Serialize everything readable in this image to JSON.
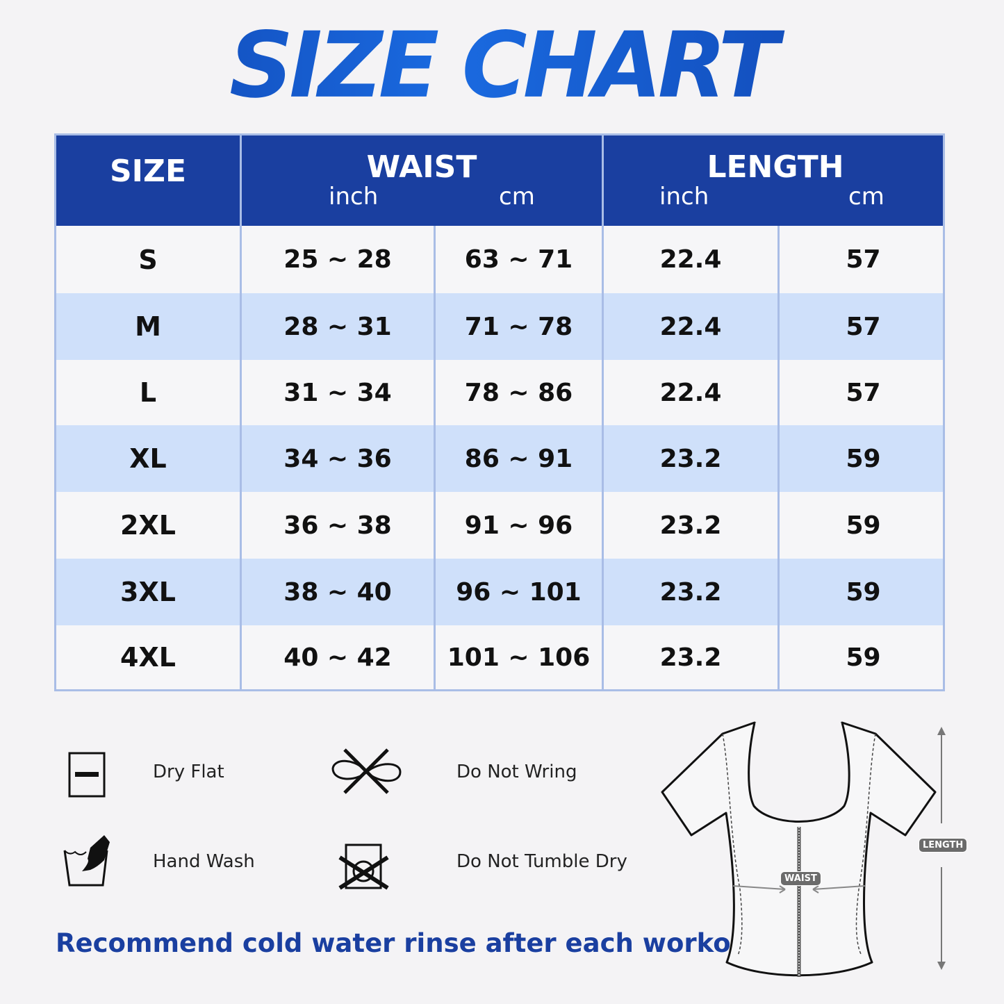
{
  "title": "SIZE CHART",
  "colors": {
    "header_bg": "#1a3fa0",
    "stripe": "#cfe0fa",
    "border": "#a9bde6",
    "title": "#1550c8"
  },
  "table": {
    "headers": {
      "size": "SIZE",
      "waist": "WAIST",
      "waist_inch": "inch",
      "waist_cm": "cm",
      "length": "LENGTH",
      "length_inch": "inch",
      "length_cm": "cm"
    },
    "rows": [
      [
        "S",
        "25 ~ 28",
        "63 ~ 71",
        "22.4",
        "57"
      ],
      [
        "M",
        "28 ~ 31",
        "71 ~ 78",
        "22.4",
        "57"
      ],
      [
        "L",
        "31 ~ 34",
        "78 ~ 86",
        "22.4",
        "57"
      ],
      [
        "XL",
        "34 ~ 36",
        "86 ~ 91",
        "23.2",
        "59"
      ],
      [
        "2XL",
        "36 ~ 38",
        "91 ~ 96",
        "23.2",
        "59"
      ],
      [
        "3XL",
        "38 ~ 40",
        "96 ~ 101",
        "23.2",
        "59"
      ],
      [
        "4XL",
        "40 ~ 42",
        "101 ~ 106",
        "23.2",
        "59"
      ]
    ]
  },
  "care": [
    {
      "label": "Dry Flat",
      "icon": "dry-flat-icon"
    },
    {
      "label": "Do Not Wring",
      "icon": "do-not-wring-icon"
    },
    {
      "label": "Hand Wash",
      "icon": "hand-wash-icon"
    },
    {
      "label": "Do Not Tumble Dry",
      "icon": "do-not-tumble-dry-icon"
    }
  ],
  "note": "Recommend cold water rinse after each workout.",
  "diagram": {
    "waist_label": "WAIST",
    "length_label": "LENGTH"
  }
}
